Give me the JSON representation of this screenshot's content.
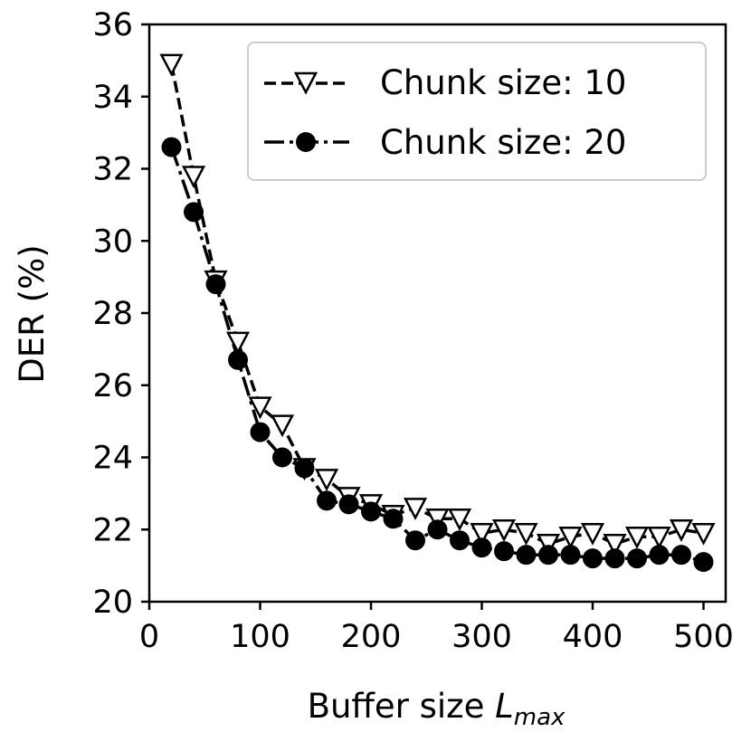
{
  "chart_data": {
    "type": "line",
    "xlabel_main": "Buffer size ",
    "xlabel_var": "L",
    "xlabel_sub": "max",
    "ylabel": "DER (%)",
    "xlim": [
      0,
      520
    ],
    "ylim": [
      20,
      36
    ],
    "xticks": [
      0,
      100,
      200,
      300,
      400,
      500
    ],
    "yticks": [
      20,
      22,
      24,
      26,
      28,
      30,
      32,
      34,
      36
    ],
    "grid": false,
    "legend_position": "top-right",
    "x": [
      20,
      40,
      60,
      80,
      100,
      120,
      140,
      160,
      180,
      200,
      220,
      240,
      260,
      280,
      300,
      320,
      340,
      360,
      380,
      400,
      420,
      440,
      460,
      480,
      500
    ],
    "series": [
      {
        "name": "Chunk size: 10",
        "marker": "triangle-down-open",
        "line_style": "dashed",
        "values": [
          34.9,
          31.8,
          28.9,
          27.2,
          25.4,
          24.9,
          23.7,
          23.4,
          22.9,
          22.7,
          22.4,
          22.6,
          22.3,
          22.3,
          21.9,
          22.0,
          21.9,
          21.6,
          21.8,
          21.9,
          21.6,
          21.8,
          21.8,
          22.0,
          21.9
        ]
      },
      {
        "name": "Chunk size: 20",
        "marker": "circle-filled",
        "line_style": "dashdot",
        "values": [
          32.6,
          30.8,
          28.8,
          26.7,
          24.7,
          24.0,
          23.7,
          22.8,
          22.7,
          22.5,
          22.3,
          21.7,
          22.0,
          21.7,
          21.5,
          21.4,
          21.3,
          21.3,
          21.3,
          21.2,
          21.2,
          21.2,
          21.3,
          21.3,
          21.1
        ]
      }
    ]
  }
}
